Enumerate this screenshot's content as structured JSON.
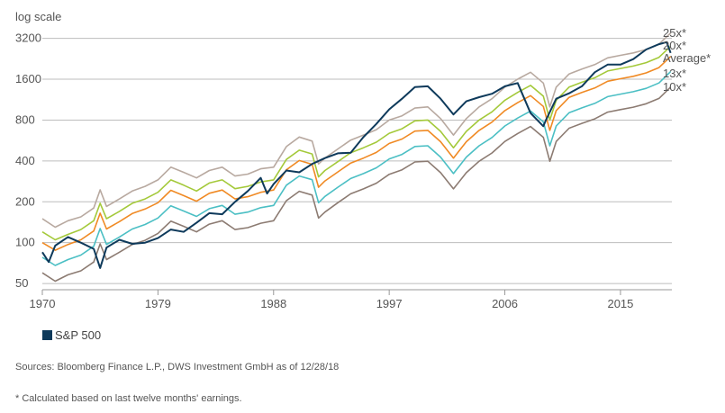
{
  "chart_data": {
    "type": "line",
    "ylabel": "log scale",
    "y_scale": "log",
    "y_ticks": [
      50,
      100,
      200,
      400,
      800,
      1600,
      3200
    ],
    "x_ticks": [
      1970,
      1979,
      1988,
      1997,
      2006,
      2015
    ],
    "xlim": [
      1970,
      2019
    ],
    "ylim": [
      45,
      4000
    ],
    "grid": true,
    "series_colors": {
      "25x*": "#b8a9a0",
      "20x*": "#a4c93a",
      "Average*": "#f08a24",
      "13x*": "#4bbfc4",
      "10x*": "#8c7b72",
      "S&P 500": "#0e3a5b"
    },
    "series": [
      {
        "name": "25x*",
        "x": [
          1970,
          1971,
          1972,
          1973,
          1974,
          1974.5,
          1975,
          1976,
          1977,
          1978,
          1979,
          1980,
          1981,
          1982,
          1983,
          1984,
          1985,
          1986,
          1987,
          1988,
          1989,
          1990,
          1991,
          1991.5,
          1992,
          1993,
          1994,
          1995,
          1996,
          1997,
          1998,
          1999,
          2000,
          2001,
          2002,
          2003,
          2004,
          2005,
          2006,
          2007,
          2008,
          2009,
          2009.5,
          2010,
          2011,
          2012,
          2013,
          2014,
          2015,
          2016,
          2017,
          2018,
          2018.9
        ],
        "y": [
          150,
          130,
          145,
          155,
          180,
          245,
          185,
          210,
          240,
          260,
          290,
          360,
          330,
          300,
          340,
          360,
          310,
          320,
          350,
          360,
          510,
          600,
          560,
          380,
          420,
          490,
          570,
          620,
          680,
          800,
          860,
          980,
          1000,
          820,
          620,
          820,
          1000,
          1150,
          1400,
          1600,
          1800,
          1500,
          1000,
          1400,
          1750,
          1900,
          2050,
          2300,
          2400,
          2500,
          2650,
          2900,
          3500
        ]
      },
      {
        "name": "20x*",
        "x": [
          1970,
          1971,
          1972,
          1973,
          1974,
          1974.5,
          1975,
          1976,
          1977,
          1978,
          1979,
          1980,
          1981,
          1982,
          1983,
          1984,
          1985,
          1986,
          1987,
          1988,
          1989,
          1990,
          1991,
          1991.5,
          1992,
          1993,
          1994,
          1995,
          1996,
          1997,
          1998,
          1999,
          2000,
          2001,
          2002,
          2003,
          2004,
          2005,
          2006,
          2007,
          2008,
          2009,
          2009.5,
          2010,
          2011,
          2012,
          2013,
          2014,
          2015,
          2016,
          2017,
          2018,
          2018.9
        ],
        "y": [
          120,
          105,
          115,
          125,
          145,
          195,
          150,
          170,
          195,
          210,
          235,
          290,
          265,
          240,
          275,
          290,
          250,
          260,
          280,
          290,
          410,
          480,
          450,
          305,
          340,
          395,
          460,
          500,
          550,
          640,
          690,
          790,
          800,
          660,
          500,
          660,
          800,
          920,
          1120,
          1280,
          1440,
          1200,
          800,
          1120,
          1400,
          1520,
          1640,
          1840,
          1920,
          2000,
          2120,
          2320,
          2800
        ]
      },
      {
        "name": "Average*",
        "x": [
          1970,
          1971,
          1972,
          1973,
          1974,
          1974.5,
          1975,
          1976,
          1977,
          1978,
          1979,
          1980,
          1981,
          1982,
          1983,
          1984,
          1985,
          1986,
          1987,
          1988,
          1989,
          1990,
          1991,
          1991.5,
          1992,
          1993,
          1994,
          1995,
          1996,
          1997,
          1998,
          1999,
          2000,
          2001,
          2002,
          2003,
          2004,
          2005,
          2006,
          2007,
          2008,
          2009,
          2009.5,
          2010,
          2011,
          2012,
          2013,
          2014,
          2015,
          2016,
          2017,
          2018,
          2018.9
        ],
        "y": [
          100,
          88,
          97,
          105,
          122,
          165,
          126,
          143,
          164,
          177,
          197,
          243,
          222,
          202,
          231,
          244,
          210,
          218,
          235,
          244,
          344,
          403,
          378,
          256,
          285,
          332,
          386,
          420,
          462,
          538,
          580,
          664,
          672,
          554,
          420,
          554,
          672,
          773,
          940,
          1075,
          1210,
          1008,
          672,
          940,
          1176,
          1277,
          1378,
          1546,
          1613,
          1680,
          1781,
          1949,
          2350
        ]
      },
      {
        "name": "13x*",
        "x": [
          1970,
          1971,
          1972,
          1973,
          1974,
          1974.5,
          1975,
          1976,
          1977,
          1978,
          1979,
          1980,
          1981,
          1982,
          1983,
          1984,
          1985,
          1986,
          1987,
          1988,
          1989,
          1990,
          1991,
          1991.5,
          1992,
          1993,
          1994,
          1995,
          1996,
          1997,
          1998,
          1999,
          2000,
          2001,
          2002,
          2003,
          2004,
          2005,
          2006,
          2007,
          2008,
          2009,
          2009.5,
          2010,
          2011,
          2012,
          2013,
          2014,
          2015,
          2016,
          2017,
          2018,
          2018.9
        ],
        "y": [
          78,
          68,
          75,
          81,
          94,
          127,
          97,
          110,
          126,
          136,
          152,
          187,
          171,
          156,
          178,
          188,
          162,
          168,
          181,
          188,
          265,
          310,
          291,
          197,
          219,
          256,
          297,
          323,
          356,
          414,
          447,
          511,
          517,
          427,
          323,
          427,
          517,
          595,
          724,
          828,
          932,
          776,
          517,
          724,
          906,
          983,
          1061,
          1190,
          1242,
          1294,
          1371,
          1501,
          1820
        ]
      },
      {
        "name": "10x*",
        "x": [
          1970,
          1971,
          1972,
          1973,
          1974,
          1974.5,
          1975,
          1976,
          1977,
          1978,
          1979,
          1980,
          1981,
          1982,
          1983,
          1984,
          1985,
          1986,
          1987,
          1988,
          1989,
          1990,
          1991,
          1991.5,
          1992,
          1993,
          1994,
          1995,
          1996,
          1997,
          1998,
          1999,
          2000,
          2001,
          2002,
          2003,
          2004,
          2005,
          2006,
          2007,
          2008,
          2009,
          2009.5,
          2010,
          2011,
          2012,
          2013,
          2014,
          2015,
          2016,
          2017,
          2018,
          2018.9
        ],
        "y": [
          60,
          52,
          58,
          62,
          72,
          98,
          75,
          85,
          97,
          104,
          117,
          144,
          132,
          120,
          137,
          145,
          125,
          129,
          139,
          145,
          204,
          239,
          224,
          152,
          168,
          197,
          229,
          249,
          274,
          319,
          344,
          393,
          398,
          328,
          249,
          328,
          398,
          458,
          557,
          637,
          717,
          597,
          398,
          557,
          697,
          757,
          817,
          916,
          956,
          996,
          1055,
          1155,
          1400
        ]
      },
      {
        "name": "S&P 500",
        "x": [
          1970,
          1970.5,
          1971,
          1972,
          1973,
          1974,
          1974.5,
          1975,
          1976,
          1977,
          1978,
          1979,
          1980,
          1981,
          1982,
          1983,
          1984,
          1985,
          1986,
          1987,
          1987.5,
          1988,
          1989,
          1990,
          1991,
          1992,
          1993,
          1994,
          1995,
          1996,
          1997,
          1998,
          1999,
          2000,
          2001,
          2002,
          2003,
          2004,
          2005,
          2006,
          2007,
          2008,
          2009,
          2009.2,
          2010,
          2011,
          2012,
          2013,
          2014,
          2015,
          2016,
          2017,
          2018,
          2018.6,
          2018.9
        ],
        "y": [
          85,
          72,
          95,
          110,
          100,
          90,
          65,
          92,
          105,
          98,
          100,
          108,
          125,
          120,
          140,
          165,
          162,
          200,
          240,
          300,
          230,
          270,
          340,
          330,
          380,
          420,
          455,
          460,
          600,
          750,
          960,
          1150,
          1400,
          1420,
          1150,
          880,
          1100,
          1180,
          1250,
          1420,
          1500,
          900,
          720,
          800,
          1150,
          1260,
          1420,
          1800,
          2050,
          2050,
          2250,
          2650,
          2900,
          3000,
          2500
        ]
      }
    ],
    "right_labels": [
      "25x*",
      "20x*",
      "Average*",
      "13x*",
      "10x*"
    ]
  },
  "legend": {
    "label": "S&P 500"
  },
  "source": "Sources: Bloomberg Finance L.P., DWS Investment GmbH as of 12/28/18",
  "footnote": "* Calculated based on last twelve months' earnings."
}
